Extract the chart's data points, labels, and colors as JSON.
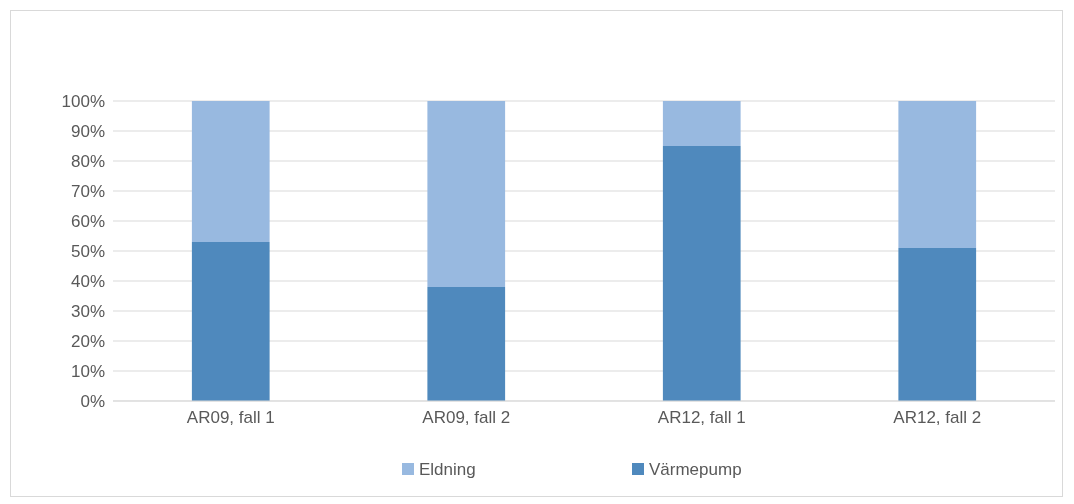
{
  "chart_data": {
    "type": "bar",
    "stacked": true,
    "categories": [
      "AR09, fall 1",
      "AR09, fall 2",
      "AR12, fall 1",
      "AR12, fall 2"
    ],
    "series": [
      {
        "name": "Värmepump",
        "color": "#4f89bd",
        "values": [
          53,
          38,
          85,
          51
        ]
      },
      {
        "name": "Eldning",
        "color": "#98b9e0",
        "values": [
          47,
          62,
          15,
          49
        ]
      }
    ],
    "ylim": [
      0,
      100
    ],
    "yticks": [
      {
        "value": 0,
        "label": "0%"
      },
      {
        "value": 10,
        "label": "10%"
      },
      {
        "value": 20,
        "label": "20%"
      },
      {
        "value": 30,
        "label": "30%"
      },
      {
        "value": 40,
        "label": "40%"
      },
      {
        "value": 50,
        "label": "50%"
      },
      {
        "value": 60,
        "label": "60%"
      },
      {
        "value": 70,
        "label": "70%"
      },
      {
        "value": 80,
        "label": "80%"
      },
      {
        "value": 90,
        "label": "90%"
      },
      {
        "value": 100,
        "label": "100%"
      }
    ],
    "grid": "y",
    "legend": "bottom"
  }
}
